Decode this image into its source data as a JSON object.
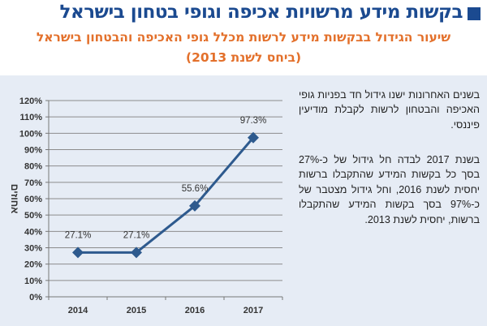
{
  "header": {
    "title": "בקשות מידע מרשויות אכיפה וגופי בטחון בישראל",
    "title_color": "#1b4a90",
    "subtitle_line1": "שיעור הגידול בבקשות מידע לרשות מכלל גופי האכיפה והבטחון בישראל",
    "subtitle_line2": "(ביחס לשנת 2013)",
    "subtitle_color": "#e3702b"
  },
  "text": {
    "paragraph1": "בשנים האחרונות ישנו גידול חד בפניות גופי האכיפה והבטחון לרשות לקבלת מודיעין פיננסי.",
    "paragraph2": "בשנת 2017 לבדה חל גידול של כ-27% בסך כל בקשות המידע שהתקבלו ברשות יחסית לשנת 2016, וחל גידול מצטבר של כ-97% בסך בקשות המידע שהתקבלו ברשות, יחסית לשנת 2013."
  },
  "chart_data": {
    "type": "line",
    "categories": [
      "2014",
      "2015",
      "2016",
      "2017"
    ],
    "values": [
      27.1,
      27.1,
      55.6,
      97.3
    ],
    "data_labels": [
      "27.1%",
      "27.1%",
      "55.6%",
      "97.3%"
    ],
    "ylabel": "אחוזים",
    "ylim": [
      0,
      120
    ],
    "yticks": [
      "0%",
      "10%",
      "20%",
      "30%",
      "40%",
      "50%",
      "60%",
      "70%",
      "80%",
      "90%",
      "100%",
      "110%",
      "120%"
    ],
    "grid": true,
    "marker": "diamond",
    "line_color": "#2e5a8e"
  }
}
